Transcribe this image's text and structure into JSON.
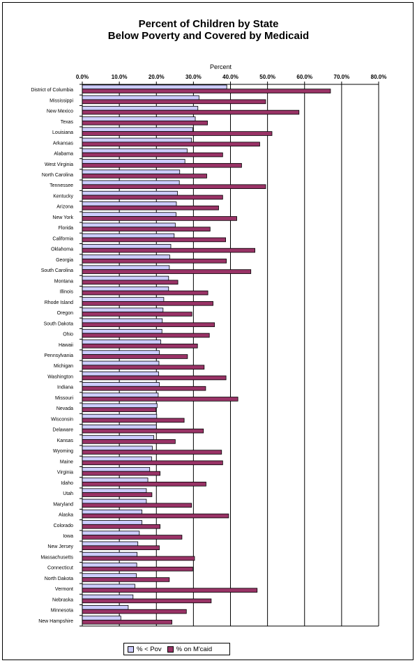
{
  "chart_data": {
    "type": "bar",
    "orientation": "horizontal",
    "title_line1": "Percent of Children by State",
    "title_line2": "Below Poverty and Covered by Medicaid",
    "axis_title": "Percent",
    "xlim": [
      0,
      80
    ],
    "x_ticks": [
      "0.0%",
      "10.0%",
      "20.0%",
      "30.0%",
      "40.0%",
      "50.0%",
      "60.0%",
      "70.0%",
      "80.0%"
    ],
    "grid": "vertical",
    "legend_placement": "bottom",
    "categories": [
      "District of Columbia",
      "Mississippi",
      "New Mexico",
      "Texas",
      "Louisiana",
      "Arkansas",
      "Alabama",
      "West Virginia",
      "North Carolina",
      "Tennessee",
      "Kentucky",
      "Arizona",
      "New York",
      "Florida",
      "California",
      "Oklahoma",
      "Georgia",
      "South Carolina",
      "Montana",
      "Illinois",
      "Rhode Island",
      "Oregon",
      "South Dakota",
      "Ohio",
      "Hawaii",
      "Pennsylvania",
      "Michigan",
      "Washington",
      "Indiana",
      "Missouri",
      "Nevada",
      "Wisconsin",
      "Delaware",
      "Kansas",
      "Wyoming",
      "Maine",
      "Virginia",
      "Idaho",
      "Utah",
      "Maryland",
      "Alaska",
      "Colorado",
      "Iowa",
      "New Jersey",
      "Massachusetts",
      "Connecticut",
      "North Dakota",
      "Vermont",
      "Nebraska",
      "Minnesota",
      "New Hampshire"
    ],
    "series": [
      {
        "name": "% < Pov",
        "color": "#ccccff",
        "values": [
          39.0,
          31.5,
          31.2,
          30.5,
          29.8,
          29.5,
          28.3,
          27.7,
          26.3,
          26.2,
          25.7,
          25.4,
          25.3,
          25.1,
          24.8,
          23.9,
          23.6,
          23.5,
          23.3,
          23.3,
          22.0,
          21.8,
          21.6,
          21.5,
          21.2,
          20.8,
          20.7,
          20.6,
          20.8,
          20.5,
          20.2,
          20.1,
          20.0,
          19.3,
          18.9,
          18.7,
          18.2,
          17.7,
          17.3,
          17.3,
          16.1,
          16.1,
          15.4,
          15.0,
          14.8,
          14.7,
          14.6,
          14.2,
          13.7,
          12.4,
          10.4
        ]
      },
      {
        "name": "% on M'caid",
        "color": "#993366",
        "values": [
          67.0,
          49.5,
          58.5,
          33.8,
          51.2,
          47.9,
          37.9,
          43.0,
          33.6,
          49.5,
          37.9,
          36.8,
          41.7,
          34.5,
          38.7,
          46.6,
          38.9,
          45.5,
          25.8,
          33.9,
          35.3,
          29.6,
          35.7,
          34.3,
          31.1,
          28.4,
          32.9,
          38.8,
          33.3,
          42.0,
          19.9,
          27.5,
          32.7,
          25.1,
          37.6,
          37.9,
          21.0,
          33.4,
          18.8,
          29.5,
          39.5,
          21.0,
          26.9,
          20.8,
          30.3,
          29.8,
          23.5,
          47.2,
          34.8,
          28.1,
          24.2
        ]
      }
    ]
  }
}
